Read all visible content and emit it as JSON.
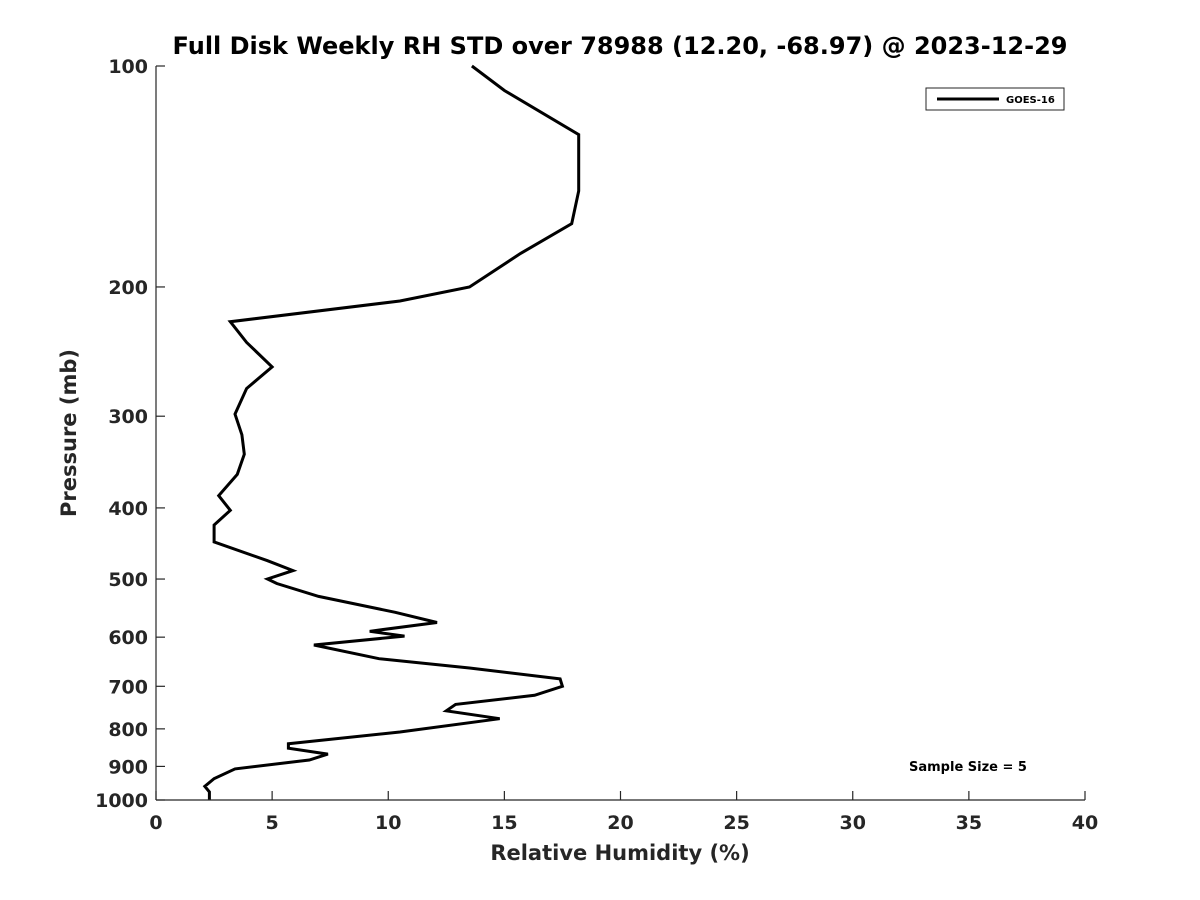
{
  "chart_data": {
    "type": "line",
    "title": "Full Disk Weekly RH STD over 78988 (12.20, -68.97) @ 2023-12-29",
    "xlabel": "Relative Humidity (%)",
    "ylabel": "Pressure (mb)",
    "xlim": [
      0,
      40
    ],
    "ylim": [
      100,
      1000
    ],
    "y_scale": "log",
    "y_reversed": true,
    "grid": false,
    "x_ticks": [
      0,
      5,
      10,
      15,
      20,
      25,
      30,
      35,
      40
    ],
    "y_ticks": [
      100,
      200,
      300,
      400,
      500,
      600,
      700,
      800,
      900,
      1000
    ],
    "legend": {
      "position": "top-right",
      "entries": [
        "GOES-16"
      ]
    },
    "annotation": "Sample Size = 5",
    "series": [
      {
        "name": "GOES-16",
        "color": "#000000",
        "points": [
          [
            13.6,
            100
          ],
          [
            15.0,
            108
          ],
          [
            18.2,
            124
          ],
          [
            18.2,
            148
          ],
          [
            17.9,
            164
          ],
          [
            15.7,
            180
          ],
          [
            13.5,
            200
          ],
          [
            10.5,
            209
          ],
          [
            3.2,
            223
          ],
          [
            3.9,
            238
          ],
          [
            5.0,
            257
          ],
          [
            3.9,
            275
          ],
          [
            3.4,
            298
          ],
          [
            3.7,
            318
          ],
          [
            3.8,
            338
          ],
          [
            3.5,
            360
          ],
          [
            2.7,
            385
          ],
          [
            3.2,
            403
          ],
          [
            2.5,
            422
          ],
          [
            2.5,
            445
          ],
          [
            4.8,
            472
          ],
          [
            5.9,
            487
          ],
          [
            4.8,
            500
          ],
          [
            5.2,
            507
          ],
          [
            7.0,
            528
          ],
          [
            10.3,
            555
          ],
          [
            12.1,
            573
          ],
          [
            9.2,
            589
          ],
          [
            10.7,
            598
          ],
          [
            6.8,
            615
          ],
          [
            9.6,
            642
          ],
          [
            13.5,
            661
          ],
          [
            17.4,
            684
          ],
          [
            17.5,
            700
          ],
          [
            16.3,
            720
          ],
          [
            12.9,
            741
          ],
          [
            12.5,
            756
          ],
          [
            14.8,
            775
          ],
          [
            10.5,
            808
          ],
          [
            5.7,
            838
          ],
          [
            5.7,
            850
          ],
          [
            7.4,
            866
          ],
          [
            6.6,
            882
          ],
          [
            3.4,
            907
          ],
          [
            2.5,
            935
          ],
          [
            2.1,
            958
          ],
          [
            2.3,
            975
          ],
          [
            2.3,
            1000
          ]
        ]
      }
    ]
  }
}
